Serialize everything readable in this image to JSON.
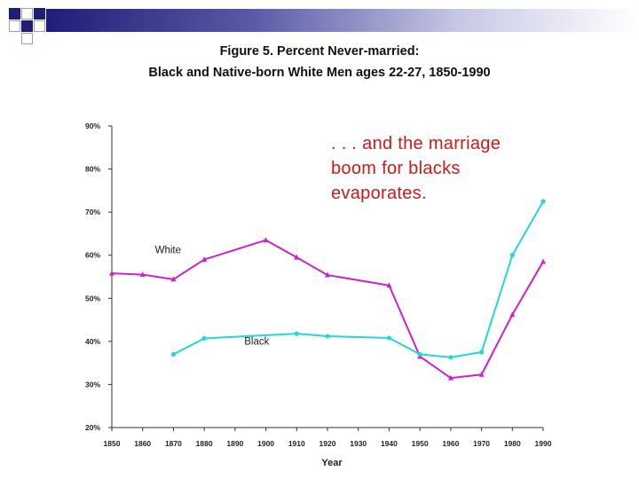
{
  "slide": {
    "title_line1": "Figure 5.  Percent Never-married:",
    "title_line2": "Black and Native-born White Men ages 22-27, 1850-1990",
    "annotation": ". . . and the marriage boom for blacks evaporates.",
    "colors": {
      "deco_dark": "#1e1e78",
      "deco_light": "#9a9ad0"
    }
  },
  "chart_data": {
    "type": "line",
    "title": "Figure 5.  Percent Never-married: Black and Native-born White Men ages 22-27, 1850-1990",
    "xlabel": "Year",
    "ylabel": "",
    "x": [
      1850,
      1860,
      1870,
      1880,
      1890,
      1900,
      1910,
      1920,
      1930,
      1940,
      1950,
      1960,
      1970,
      1980,
      1990
    ],
    "xlim": [
      1850,
      1990
    ],
    "ylim": [
      20,
      90
    ],
    "yticks": [
      "20%",
      "30%",
      "40%",
      "50%",
      "60%",
      "70%",
      "80%",
      "90%"
    ],
    "grid": false,
    "series": [
      {
        "name": "White",
        "color": "#cc22cc",
        "marker": "triangle",
        "label_pos": [
          1864,
          60.5
        ],
        "points": [
          [
            1850,
            55.8
          ],
          [
            1860,
            55.5
          ],
          [
            1870,
            54.4
          ],
          [
            1880,
            59
          ],
          [
            1900,
            63.5
          ],
          [
            1910,
            59.5
          ],
          [
            1920,
            55.4
          ],
          [
            1940,
            53
          ],
          [
            1950,
            36.5
          ],
          [
            1960,
            31.5
          ],
          [
            1970,
            32.3
          ],
          [
            1980,
            46.2
          ],
          [
            1990,
            58.5
          ]
        ]
      },
      {
        "name": "Black",
        "color": "#22d8d8",
        "marker": "circle",
        "label_pos": [
          1893,
          39.3
        ],
        "points": [
          [
            1870,
            37
          ],
          [
            1880,
            40.7
          ],
          [
            1910,
            41.8
          ],
          [
            1920,
            41.2
          ],
          [
            1940,
            40.8
          ],
          [
            1950,
            37
          ],
          [
            1960,
            36.3
          ],
          [
            1970,
            37.5
          ],
          [
            1980,
            60
          ],
          [
            1990,
            72.5
          ]
        ]
      }
    ]
  }
}
